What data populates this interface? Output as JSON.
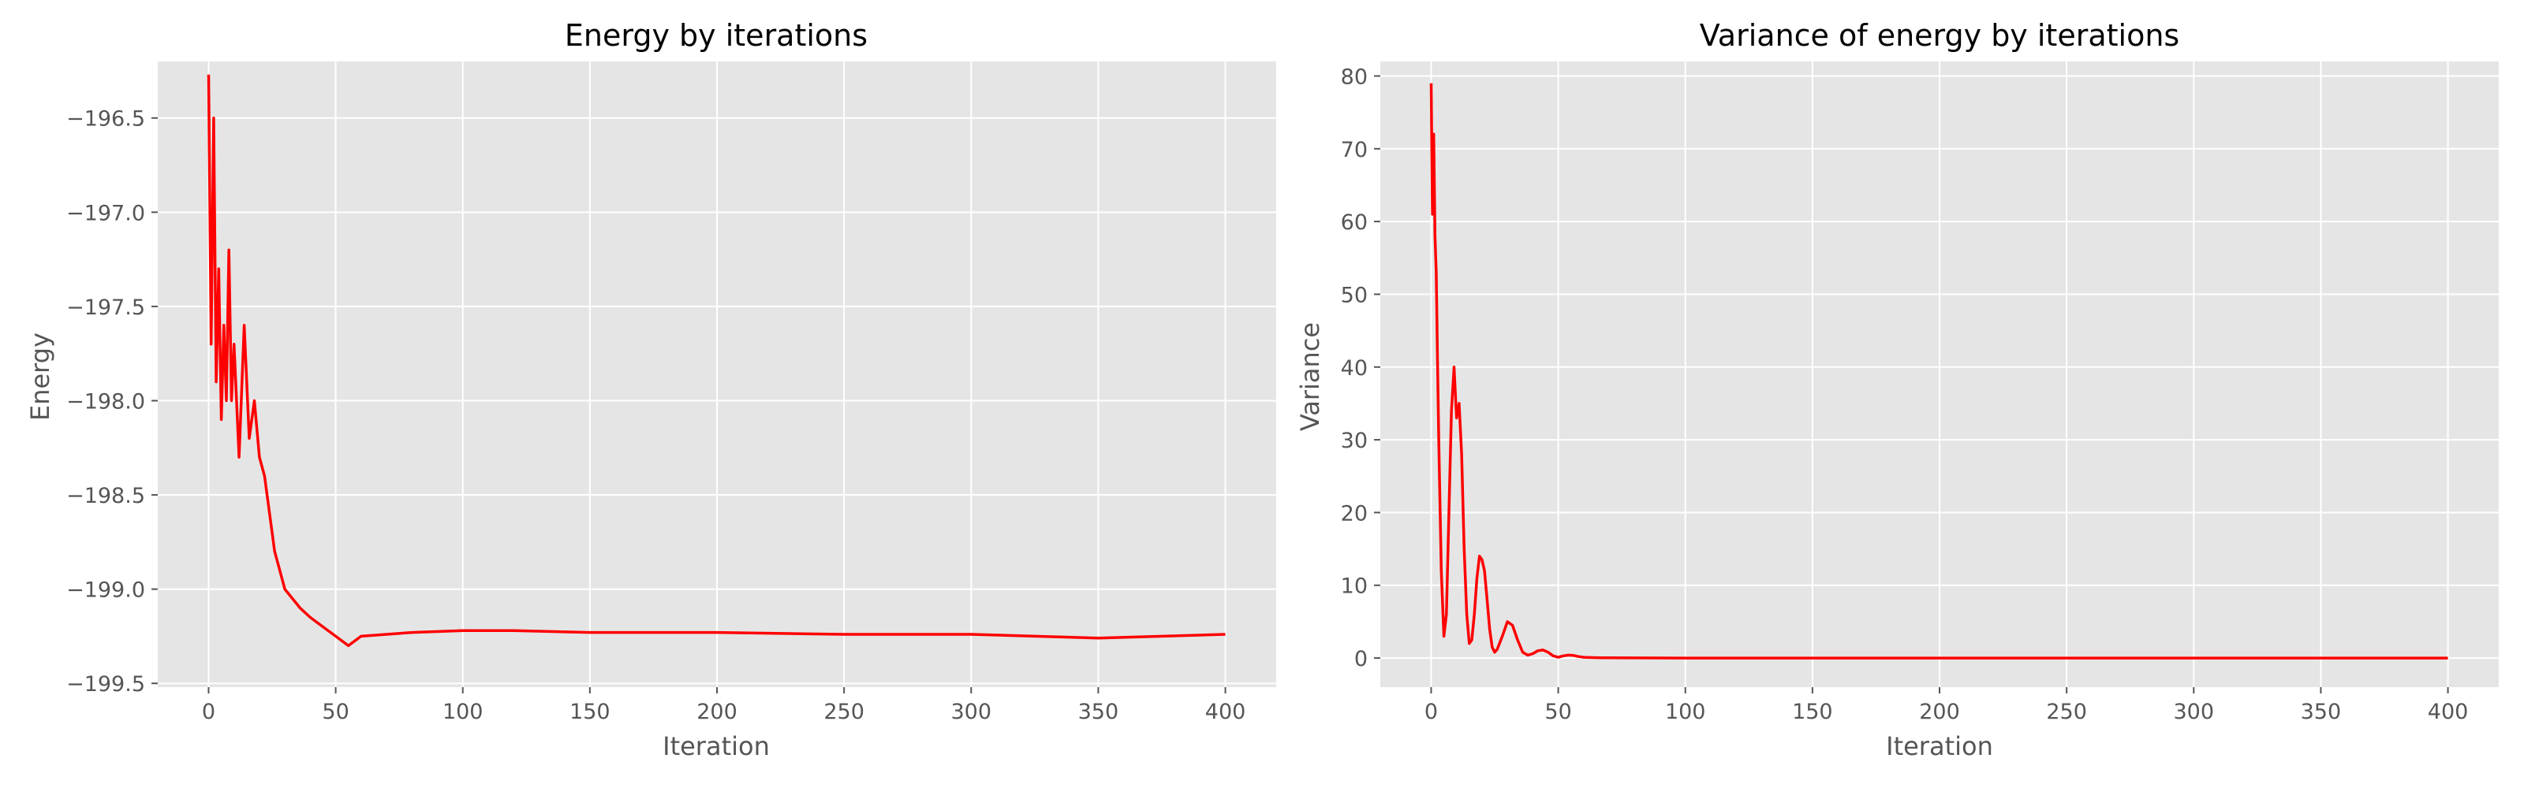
{
  "chart_data": [
    {
      "type": "line",
      "title": "Energy by iterations",
      "xlabel": "Iteration",
      "ylabel": "Energy",
      "xlim": [
        -20,
        420
      ],
      "ylim": [
        -199.52,
        -196.2
      ],
      "xticks": [
        0,
        50,
        100,
        150,
        200,
        250,
        300,
        350,
        400
      ],
      "yticks": [
        -199.5,
        -199.0,
        -198.5,
        -198.0,
        -197.5,
        -197.0,
        -196.5
      ],
      "ytick_labels": [
        "−199.5",
        "−199.0",
        "−198.5",
        "−198.0",
        "−197.5",
        "−197.0",
        "−196.5"
      ],
      "xtick_labels": [
        "0",
        "50",
        "100",
        "150",
        "200",
        "250",
        "300",
        "350",
        "400"
      ],
      "grid": true,
      "series": [
        {
          "color": "#ff0000",
          "x": [
            0,
            1,
            2,
            3,
            4,
            5,
            6,
            7,
            8,
            9,
            10,
            12,
            14,
            16,
            18,
            20,
            22,
            24,
            26,
            28,
            30,
            33,
            36,
            40,
            45,
            50,
            55,
            60,
            70,
            80,
            100,
            120,
            150,
            200,
            250,
            300,
            350,
            400
          ],
          "y": [
            -196.27,
            -197.7,
            -196.5,
            -197.9,
            -197.3,
            -198.1,
            -197.6,
            -198.0,
            -197.2,
            -198.0,
            -197.7,
            -198.3,
            -197.6,
            -198.2,
            -198.0,
            -198.3,
            -198.4,
            -198.6,
            -198.8,
            -198.9,
            -199.0,
            -199.05,
            -199.1,
            -199.15,
            -199.2,
            -199.25,
            -199.3,
            -199.25,
            -199.24,
            -199.23,
            -199.22,
            -199.22,
            -199.23,
            -199.23,
            -199.24,
            -199.24,
            -199.26,
            -199.24
          ]
        }
      ]
    },
    {
      "type": "line",
      "title": "Variance of energy by iterations",
      "xlabel": "Iteration",
      "ylabel": "Variance",
      "xlim": [
        -20,
        420
      ],
      "ylim": [
        -4,
        82
      ],
      "xticks": [
        0,
        50,
        100,
        150,
        200,
        250,
        300,
        350,
        400
      ],
      "yticks": [
        0,
        10,
        20,
        30,
        40,
        50,
        60,
        70,
        80
      ],
      "ytick_labels": [
        "0",
        "10",
        "20",
        "30",
        "40",
        "50",
        "60",
        "70",
        "80"
      ],
      "xtick_labels": [
        "0",
        "50",
        "100",
        "150",
        "200",
        "250",
        "300",
        "350",
        "400"
      ],
      "grid": true,
      "series": [
        {
          "color": "#ff0000",
          "x": [
            0,
            0.5,
            1,
            1.5,
            2,
            2.5,
            3,
            4,
            5,
            6,
            7,
            8,
            9,
            10,
            11,
            12,
            13,
            14,
            15,
            16,
            17,
            18,
            19,
            20,
            21,
            22,
            23,
            24,
            25,
            26,
            28,
            30,
            32,
            34,
            36,
            38,
            40,
            42,
            44,
            46,
            48,
            50,
            52,
            54,
            56,
            58,
            60,
            65,
            70,
            80,
            100,
            200,
            300,
            400
          ],
          "y": [
            79,
            61,
            72,
            58,
            53,
            41,
            30,
            12,
            3,
            6,
            20,
            34,
            40,
            33,
            35,
            28,
            15,
            6,
            2,
            2.5,
            6,
            11,
            14,
            13.5,
            12,
            8,
            4,
            1.5,
            0.8,
            1.2,
            3,
            5,
            4.5,
            2.5,
            0.8,
            0.4,
            0.6,
            1.0,
            1.1,
            0.8,
            0.3,
            0.1,
            0.3,
            0.4,
            0.35,
            0.2,
            0.1,
            0.05,
            0.03,
            0.02,
            0,
            0,
            0,
            0
          ]
        }
      ]
    }
  ]
}
